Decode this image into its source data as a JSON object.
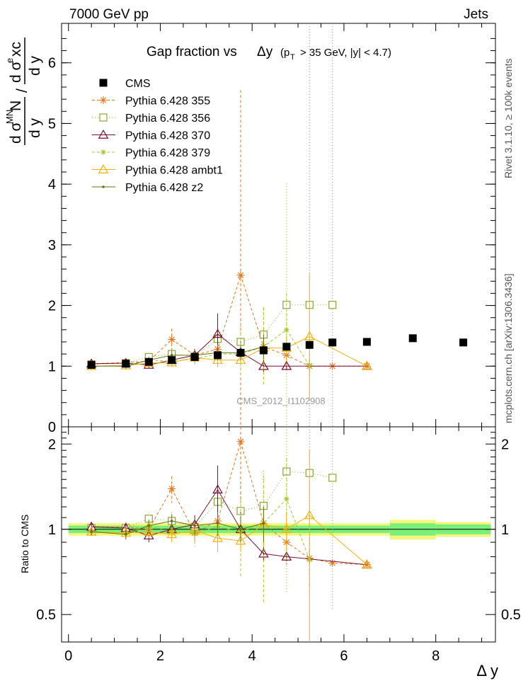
{
  "header": {
    "left": "7000 GeV pp",
    "right": "Jets"
  },
  "side_labels": {
    "rivet": "Rivet 3.1.10, ≥ 100k events",
    "mcplots": "mcplots.cern.ch [arXiv:1306.3436]"
  },
  "watermark": "CMS_2012_I1102908",
  "main_title": {
    "prefix": "Gap fraction vs",
    "var": "Δy",
    "cut1": "(p",
    "cut_sub": "T",
    "cut2": "> 35 GeV, |y| < 4.7)"
  },
  "ylabel_main": {
    "num_a": "d σ",
    "num_sup": "MN",
    "num_b": "d y",
    "slash": "/",
    "den_a": "d σ",
    "den_sup": "e",
    "den_b": "xc",
    "den_c": "d y"
  },
  "ylabel_ratio": "Ratio to CMS",
  "xlabel": "Δ y",
  "colors": {
    "cms": "#000000",
    "p355": "#e5731a",
    "p356": "#8ba630",
    "p370": "#7a0d33",
    "p379": "#a3c728",
    "ambt1": "#f0b20a",
    "z2": "#66700f",
    "band_inner": "#7af07a",
    "band_outer": "#f5f57a"
  },
  "chart_data": [
    {
      "type": "scatter",
      "panel": "main",
      "xlim": [
        -0.15,
        9.3
      ],
      "ylim": [
        0,
        6.65
      ],
      "x_ticks": [
        0,
        2,
        4,
        6,
        8
      ],
      "y_ticks": [
        0,
        1,
        2,
        3,
        4,
        5,
        6
      ],
      "y_tick_labels": [
        "0",
        "1",
        "2",
        "3",
        "4",
        "5",
        "6"
      ],
      "legend_position": "top-left",
      "series": [
        {
          "name": "CMS",
          "key": "cms",
          "marker": "square-filled",
          "x": [
            0.5,
            1.25,
            1.75,
            2.25,
            2.75,
            3.25,
            3.75,
            4.25,
            4.75,
            5.25,
            5.75,
            6.5,
            7.5,
            8.6
          ],
          "y": [
            1.02,
            1.04,
            1.07,
            1.1,
            1.15,
            1.18,
            1.22,
            1.26,
            1.32,
            1.35,
            1.39,
            1.4,
            1.46,
            1.39
          ]
        },
        {
          "name": "Pythia 6.428 355",
          "key": "p355",
          "marker": "star",
          "dash": "4,3",
          "x": [
            0.5,
            1.25,
            1.75,
            2.25,
            2.75,
            3.25,
            3.75,
            4.25,
            4.75,
            5.25,
            5.75,
            6.5
          ],
          "y": [
            1.04,
            1.06,
            1.08,
            1.44,
            1.18,
            1.28,
            2.5,
            1.32,
            1.18,
            1.0,
            1.0,
            1.0
          ],
          "err": [
            0.03,
            0.04,
            0.05,
            0.18,
            0.1,
            0.15,
            3.05,
            0.3,
            0.2,
            0.1,
            0,
            0
          ]
        },
        {
          "name": "Pythia 6.428 356",
          "key": "p356",
          "marker": "square-open",
          "dash": "1,3",
          "x": [
            0.5,
            1.25,
            1.75,
            2.25,
            2.75,
            3.25,
            3.75,
            4.25,
            4.75,
            5.25,
            5.75
          ],
          "y": [
            1.03,
            1.05,
            1.15,
            1.2,
            1.16,
            1.45,
            1.4,
            1.52,
            2.01,
            2.01,
            2.01
          ],
          "err": [
            0.03,
            0.04,
            0.06,
            0.1,
            0.12,
            0.22,
            0.35,
            0.45,
            2.0,
            5.0,
            5.0
          ]
        },
        {
          "name": "Pythia 6.428 370",
          "key": "p370",
          "marker": "triangle-open",
          "dash": "",
          "x": [
            0.5,
            1.25,
            1.75,
            2.25,
            2.75,
            3.25,
            3.75,
            4.25,
            4.75,
            6.5
          ],
          "y": [
            1.04,
            1.05,
            1.02,
            1.1,
            1.18,
            1.53,
            1.23,
            1.0,
            1.0,
            1.0
          ],
          "err": [
            0.03,
            0.04,
            0.05,
            0.07,
            0.1,
            0.34,
            0.18,
            0.1,
            0.05,
            0
          ]
        },
        {
          "name": "Pythia 6.428 379",
          "key": "p379",
          "marker": "star-small",
          "dash": "4,3",
          "x": [
            0.5,
            1.25,
            1.75,
            2.25,
            2.75,
            3.25,
            3.75,
            4.25,
            4.75,
            5.25
          ],
          "y": [
            1.0,
            1.01,
            1.1,
            1.08,
            1.12,
            1.2,
            1.2,
            1.32,
            1.6,
            1.01
          ],
          "err": [
            0.03,
            0.04,
            0.06,
            0.08,
            0.12,
            0.15,
            0.35,
            0.65,
            0.6,
            0.2
          ]
        },
        {
          "name": "Pythia 6.428 ambt1",
          "key": "ambt1",
          "marker": "triangle-open",
          "dash": "",
          "x": [
            0.5,
            1.25,
            1.75,
            2.25,
            2.75,
            3.25,
            3.75,
            4.25,
            4.75,
            5.25,
            6.5
          ],
          "y": [
            1.0,
            1.01,
            1.05,
            1.06,
            1.14,
            1.1,
            1.1,
            1.3,
            1.3,
            1.49,
            1.0
          ],
          "err": [
            0.03,
            0.04,
            0.05,
            0.07,
            0.08,
            0.12,
            0.1,
            0.2,
            0.2,
            1.05,
            0
          ]
        },
        {
          "name": "Pythia 6.428 z2",
          "key": "z2",
          "marker": "dot",
          "dash": "",
          "x": [
            0.5,
            1.25,
            1.75,
            2.25,
            2.75,
            3.25,
            3.75,
            4.25
          ],
          "y": [
            1.0,
            1.0,
            1.1,
            1.18,
            1.18,
            1.22,
            1.22,
            1.32
          ],
          "err": [
            0.03,
            0.04,
            0.05,
            0.07,
            0.1,
            0.12,
            0.12,
            0.2
          ]
        }
      ]
    },
    {
      "type": "scatter",
      "panel": "ratio",
      "ylabel": "Ratio to CMS",
      "xlabel": "Δ y",
      "xlim": [
        -0.15,
        9.3
      ],
      "ylim": [
        0.4,
        2.3
      ],
      "log_y": true,
      "y_ticks": [
        0.5,
        1,
        2
      ],
      "y_tick_labels": [
        "0.5",
        "1",
        "2"
      ],
      "x_ticks": [
        0,
        2,
        4,
        6,
        8
      ],
      "x_tick_labels": [
        "0",
        "2",
        "4",
        "6",
        "8"
      ],
      "reference_band": {
        "segments": [
          {
            "x0": 0.0,
            "x1": 7.0,
            "inner": 0.03,
            "outer": 0.05
          },
          {
            "x0": 7.0,
            "x1": 8.0,
            "inner": 0.05,
            "outer": 0.08
          },
          {
            "x0": 8.0,
            "x1": 9.2,
            "inner": 0.04,
            "outer": 0.06
          }
        ]
      },
      "series": [
        {
          "key": "p355",
          "marker": "star",
          "dash": "4,3",
          "x": [
            0.5,
            1.25,
            1.75,
            2.25,
            2.75,
            3.25,
            3.75,
            4.25,
            4.75,
            5.25,
            5.75,
            6.5
          ],
          "y": [
            1.02,
            1.02,
            1.0,
            1.39,
            0.97,
            1.07,
            2.04,
            1.05,
            0.9,
            0.79,
            0.76,
            0.75
          ],
          "err": [
            0.03,
            0.04,
            0.05,
            0.15,
            0.08,
            0.12,
            0.8,
            0.2,
            0.15,
            0.05,
            0,
            0
          ]
        },
        {
          "key": "p356",
          "marker": "square-open",
          "dash": "1,3",
          "x": [
            0.5,
            1.25,
            1.75,
            2.25,
            2.75,
            3.25,
            3.75,
            4.25,
            4.75,
            5.25,
            5.75
          ],
          "y": [
            1.01,
            1.01,
            1.09,
            1.07,
            1.02,
            1.25,
            1.16,
            1.21,
            1.6,
            1.58,
            1.52
          ],
          "err": [
            0.03,
            0.04,
            0.06,
            0.08,
            0.1,
            0.2,
            0.3,
            0.4,
            1.0,
            1.0,
            1.0
          ]
        },
        {
          "key": "p370",
          "marker": "triangle-open",
          "dash": "",
          "x": [
            0.5,
            1.25,
            1.75,
            2.25,
            2.75,
            3.25,
            3.75,
            4.25,
            4.75,
            6.5
          ],
          "y": [
            1.02,
            1.01,
            0.95,
            1.0,
            1.04,
            1.38,
            1.0,
            0.82,
            0.8,
            0.75
          ],
          "err": [
            0.03,
            0.04,
            0.05,
            0.06,
            0.08,
            0.3,
            0.15,
            0.05,
            0.03,
            0
          ]
        },
        {
          "key": "p379",
          "marker": "star-small",
          "dash": "4,3",
          "x": [
            0.5,
            1.25,
            1.75,
            2.25,
            2.75,
            3.25,
            3.75,
            4.25,
            4.75,
            5.25
          ],
          "y": [
            0.98,
            0.97,
            1.03,
            0.98,
            0.97,
            1.02,
            0.98,
            1.05,
            1.28,
            0.78
          ],
          "err": [
            0.03,
            0.04,
            0.05,
            0.07,
            0.1,
            0.12,
            0.3,
            0.5,
            0.5,
            0.15
          ]
        },
        {
          "key": "ambt1",
          "marker": "triangle-open",
          "dash": "",
          "x": [
            0.5,
            1.25,
            1.75,
            2.25,
            2.75,
            3.25,
            3.75,
            4.25,
            4.75,
            5.25,
            6.5
          ],
          "y": [
            0.98,
            0.97,
            0.98,
            0.96,
            0.99,
            0.93,
            0.91,
            1.04,
            1.0,
            1.12,
            0.75
          ],
          "err": [
            0.03,
            0.04,
            0.05,
            0.06,
            0.07,
            0.1,
            0.08,
            0.16,
            0.15,
            0.8,
            0
          ]
        },
        {
          "key": "z2",
          "marker": "dot",
          "dash": "",
          "x": [
            0.5,
            1.25,
            1.75,
            2.25,
            2.75,
            3.25,
            3.75,
            4.25
          ],
          "y": [
            0.98,
            0.96,
            1.03,
            1.07,
            1.03,
            1.05,
            1.0,
            1.05
          ],
          "err": [
            0.03,
            0.04,
            0.05,
            0.06,
            0.08,
            0.1,
            0.1,
            0.15
          ]
        }
      ]
    }
  ]
}
